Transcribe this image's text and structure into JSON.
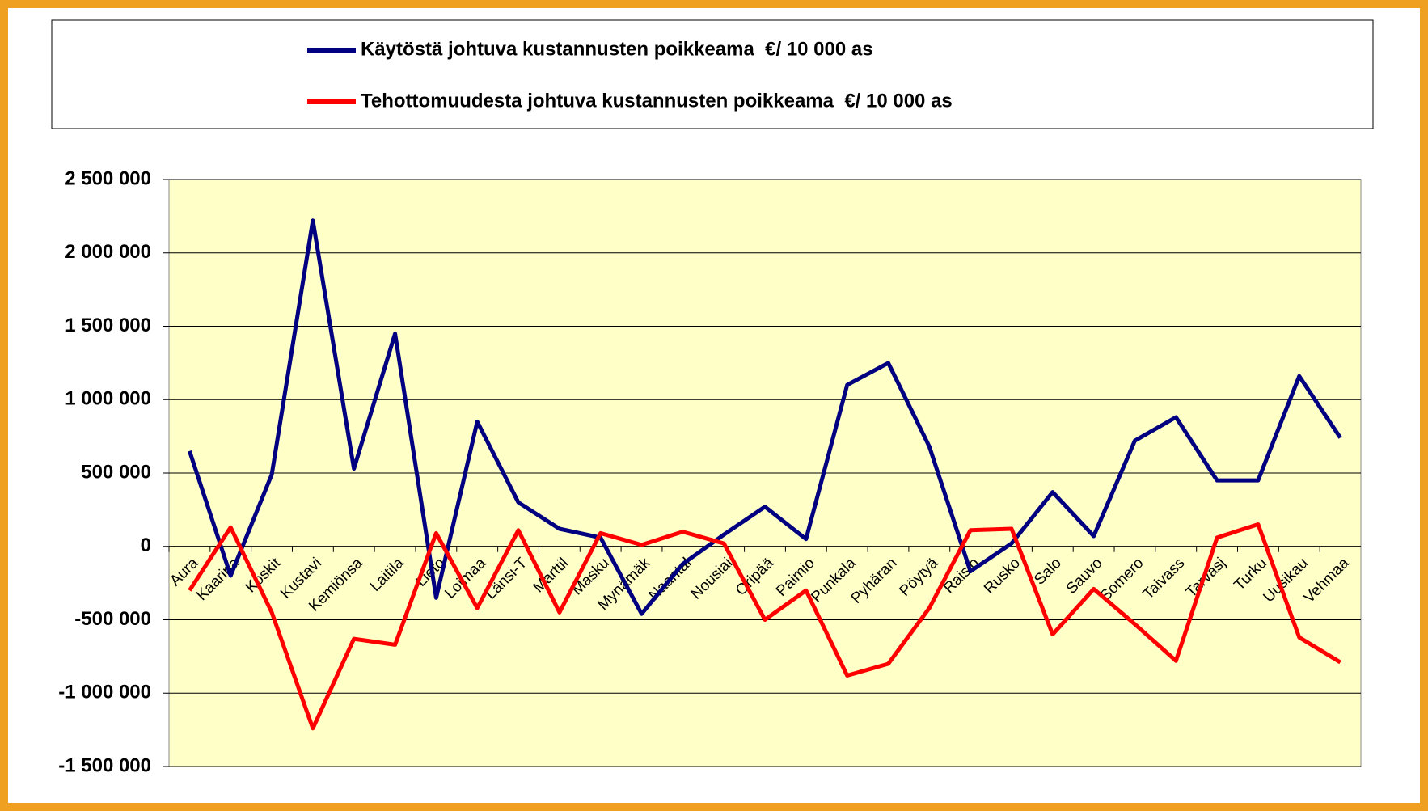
{
  "chart_data": {
    "type": "line",
    "categories": [
      "Aura",
      "Kaarina",
      "Koskit",
      "Kustavi",
      "Kemiönsa",
      "Laitila",
      "Lieto",
      "Loimaa",
      "Länsi-T",
      "Marttil",
      "Masku",
      "Mynämäk",
      "Naantal",
      "Nousiai",
      "Oripää",
      "Paimio",
      "Punkala",
      "Pyhäran",
      "Pöytyä",
      "Raisio",
      "Rusko",
      "Salo",
      "Sauvo",
      "Somero",
      "Taivass",
      "Tarvasj",
      "Turku",
      "Uusikau",
      "Vehmaa"
    ],
    "series": [
      {
        "name": "Käytöstä johtuva kustannusten poikkeama  €/ 10 000 as",
        "color": "#000080",
        "values": [
          650000,
          -200000,
          490000,
          2220000,
          530000,
          1450000,
          -350000,
          850000,
          300000,
          120000,
          60000,
          -460000,
          -120000,
          80000,
          270000,
          50000,
          1100000,
          1250000,
          680000,
          -170000,
          20000,
          370000,
          70000,
          720000,
          880000,
          450000,
          450000,
          1160000,
          740000
        ]
      },
      {
        "name": "Tehottomuudesta johtuva kustannusten poikkeama  €/ 10 000 as",
        "color": "#ff0000",
        "values": [
          -300000,
          130000,
          -450000,
          -1240000,
          -630000,
          -670000,
          90000,
          -420000,
          110000,
          -450000,
          90000,
          10000,
          100000,
          20000,
          -500000,
          -300000,
          -880000,
          -800000,
          -420000,
          110000,
          120000,
          -600000,
          -290000,
          -530000,
          -780000,
          60000,
          150000,
          -620000,
          -790000
        ]
      }
    ],
    "ylim": [
      -1500000,
      2500000
    ],
    "yticks": [
      {
        "value": -1500000,
        "label": "-1 500 000"
      },
      {
        "value": -1000000,
        "label": "-1 000 000"
      },
      {
        "value": -500000,
        "label": "-500 000"
      },
      0,
      {
        "value": 500000,
        "label": "500 000"
      },
      {
        "value": 1000000,
        "label": "1 000 000"
      },
      {
        "value": 1500000,
        "label": "1 500 000"
      },
      {
        "value": 2000000,
        "label": "2 000 000"
      },
      {
        "value": 2500000,
        "label": "2 500 000"
      }
    ],
    "grid": true,
    "legend": "top"
  }
}
